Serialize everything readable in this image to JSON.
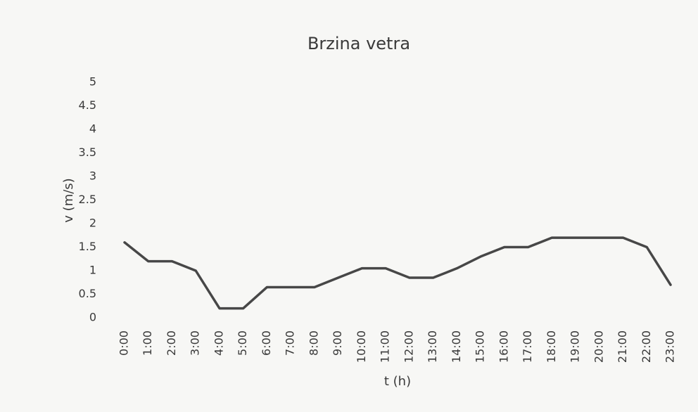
{
  "chart_data": {
    "type": "line",
    "title": "Brzina vetra",
    "x_label": "t (h)",
    "y_label": "v (m/s)",
    "categories": [
      "0:00",
      "1:00",
      "2:00",
      "3:00",
      "4:00",
      "5:00",
      "6:00",
      "7:00",
      "8:00",
      "9:00",
      "10:00",
      "11:00",
      "12:00",
      "13:00",
      "14:00",
      "15:00",
      "16:00",
      "17:00",
      "18:00",
      "19:00",
      "20:00",
      "21:00",
      "22:00",
      "23:00"
    ],
    "values": [
      1.6,
      1.2,
      1.2,
      1.0,
      0.2,
      0.2,
      0.65,
      0.65,
      0.65,
      0.85,
      1.05,
      1.05,
      0.85,
      0.85,
      1.05,
      1.3,
      1.5,
      1.5,
      1.7,
      1.7,
      1.7,
      1.7,
      1.5,
      0.7
    ],
    "color": "#474747",
    "ylim": [
      0,
      5
    ],
    "yticks": [
      0,
      0.5,
      1,
      1.5,
      2,
      2.5,
      3,
      3.5,
      4,
      4.5,
      5
    ],
    "grid": false
  }
}
